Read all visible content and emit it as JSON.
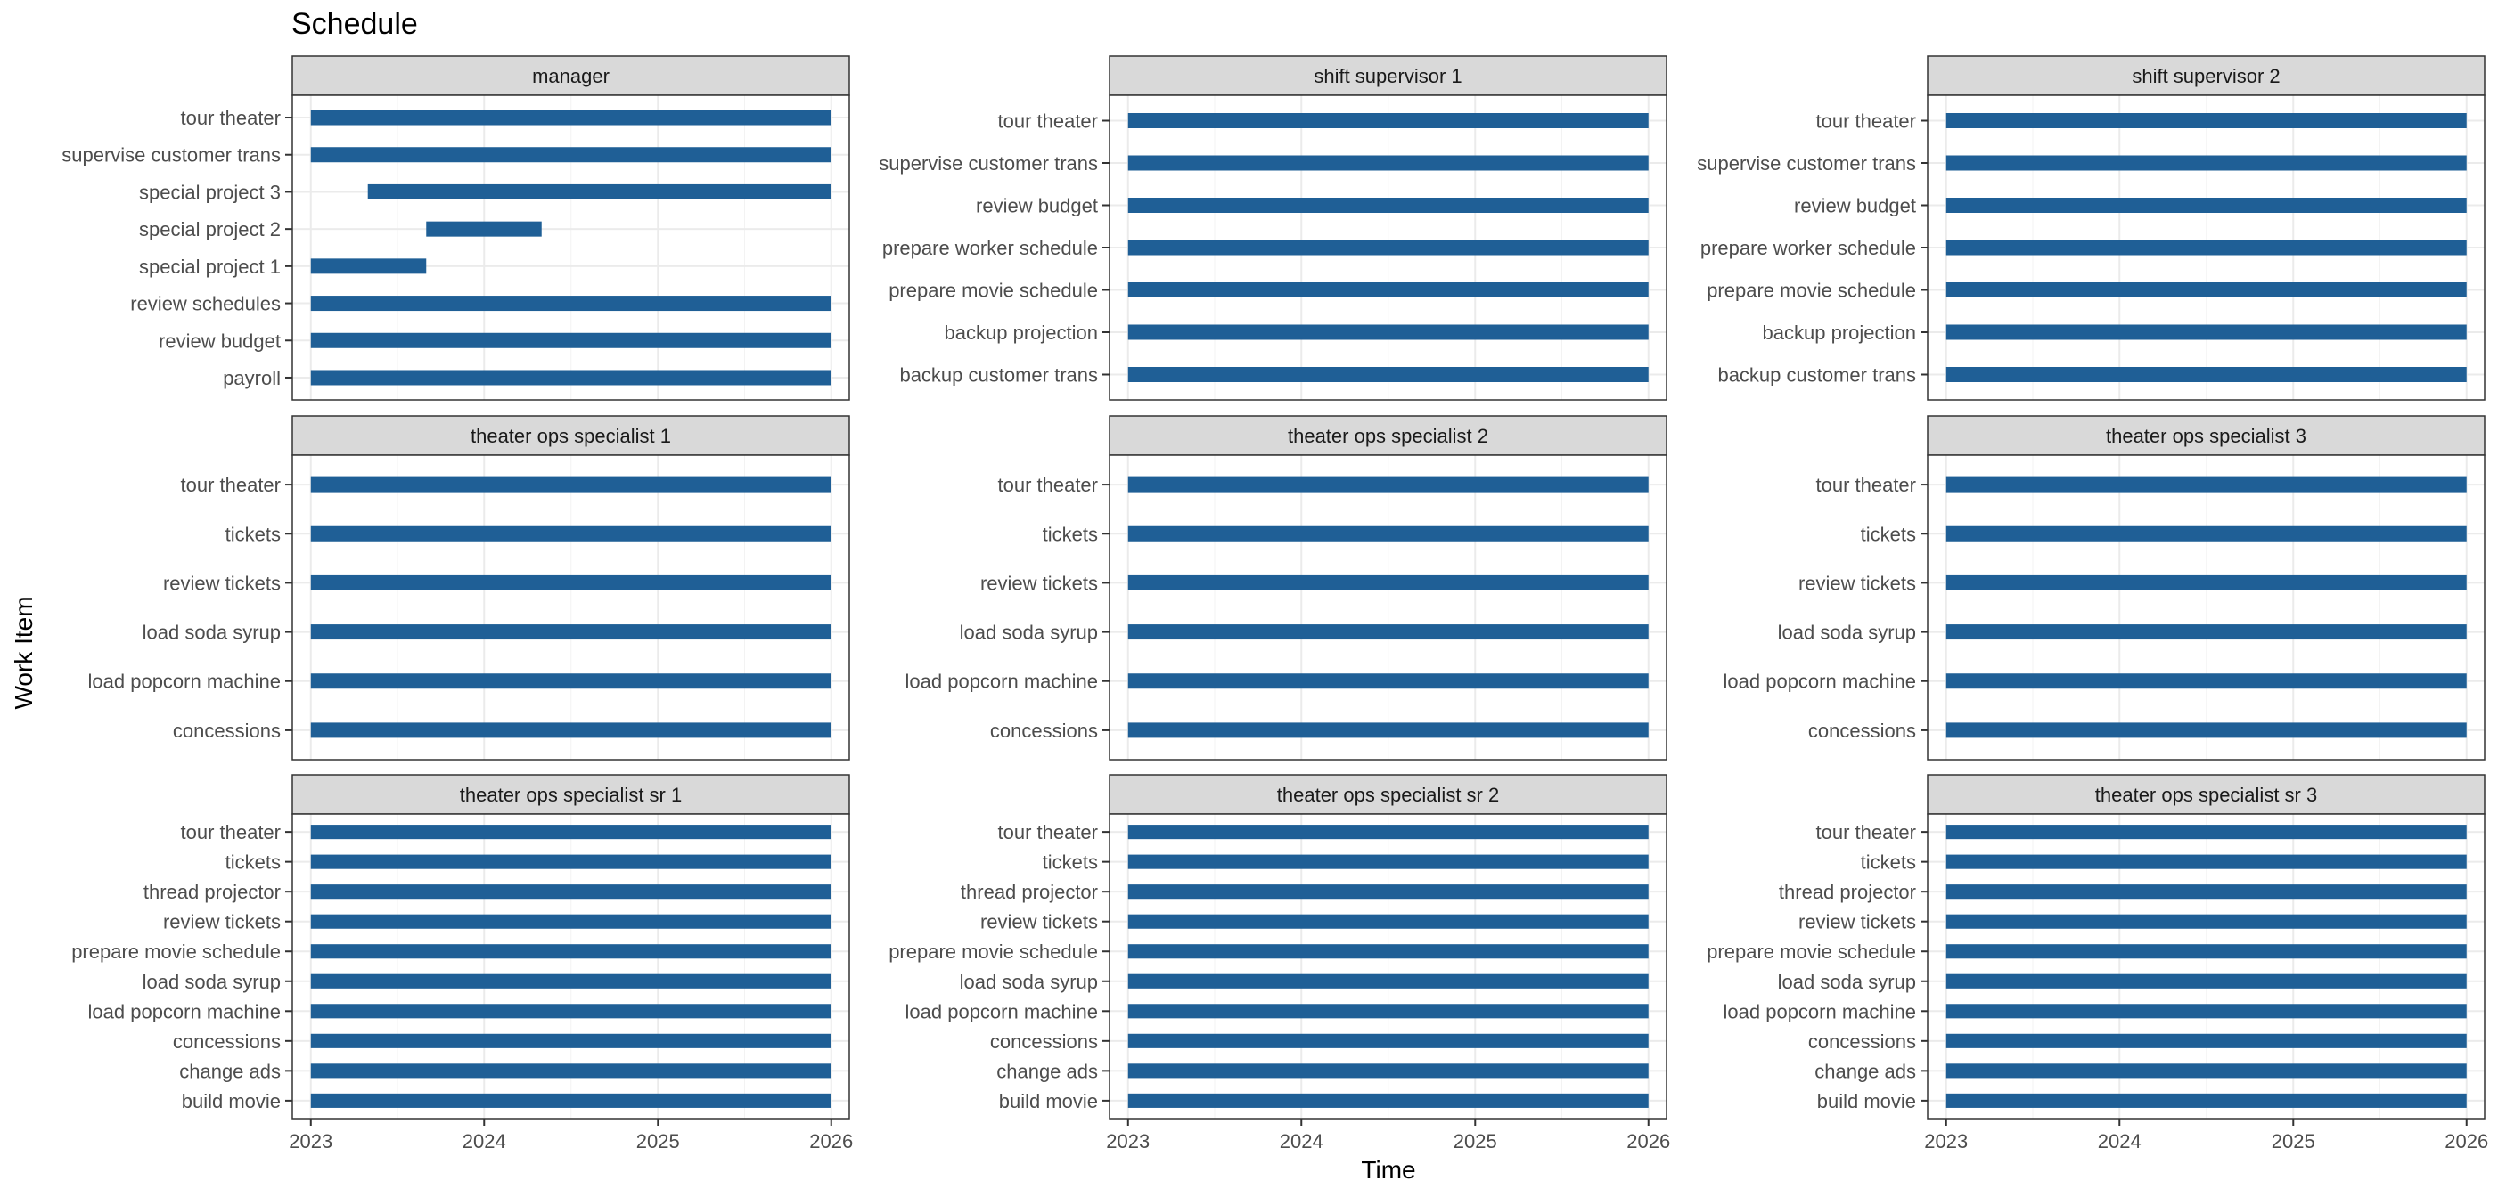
{
  "chart_data": {
    "type": "gantt",
    "title": "Schedule",
    "xlabel": "Time",
    "ylabel": "Work Item",
    "x_ticks": [
      "2023",
      "2024",
      "2025",
      "2026"
    ],
    "xlim": [
      "2022-11-23",
      "2026-02-08"
    ],
    "grid": true,
    "bar_color": "#1f5f96",
    "panels": [
      {
        "name": "manager",
        "items": [
          {
            "label": "tour theater",
            "start": "2023-01-01",
            "end": "2026-01-01"
          },
          {
            "label": "supervise customer trans",
            "start": "2023-01-01",
            "end": "2026-01-01"
          },
          {
            "label": "special project 3",
            "start": "2023-05-01",
            "end": "2026-01-01"
          },
          {
            "label": "special project 2",
            "start": "2023-09-01",
            "end": "2024-05-01"
          },
          {
            "label": "special project 1",
            "start": "2023-01-01",
            "end": "2023-09-01"
          },
          {
            "label": "review schedules",
            "start": "2023-01-01",
            "end": "2026-01-01"
          },
          {
            "label": "review budget",
            "start": "2023-01-01",
            "end": "2026-01-01"
          },
          {
            "label": "payroll",
            "start": "2023-01-01",
            "end": "2026-01-01"
          }
        ]
      },
      {
        "name": "shift supervisor 1",
        "items": [
          {
            "label": "tour theater",
            "start": "2023-01-01",
            "end": "2026-01-01"
          },
          {
            "label": "supervise customer trans",
            "start": "2023-01-01",
            "end": "2026-01-01"
          },
          {
            "label": "review budget",
            "start": "2023-01-01",
            "end": "2026-01-01"
          },
          {
            "label": "prepare worker schedule",
            "start": "2023-01-01",
            "end": "2026-01-01"
          },
          {
            "label": "prepare movie schedule",
            "start": "2023-01-01",
            "end": "2026-01-01"
          },
          {
            "label": "backup projection",
            "start": "2023-01-01",
            "end": "2026-01-01"
          },
          {
            "label": "backup customer trans",
            "start": "2023-01-01",
            "end": "2026-01-01"
          }
        ]
      },
      {
        "name": "shift supervisor 2",
        "items": [
          {
            "label": "tour theater",
            "start": "2023-01-01",
            "end": "2026-01-01"
          },
          {
            "label": "supervise customer trans",
            "start": "2023-01-01",
            "end": "2026-01-01"
          },
          {
            "label": "review budget",
            "start": "2023-01-01",
            "end": "2026-01-01"
          },
          {
            "label": "prepare worker schedule",
            "start": "2023-01-01",
            "end": "2026-01-01"
          },
          {
            "label": "prepare movie schedule",
            "start": "2023-01-01",
            "end": "2026-01-01"
          },
          {
            "label": "backup projection",
            "start": "2023-01-01",
            "end": "2026-01-01"
          },
          {
            "label": "backup customer trans",
            "start": "2023-01-01",
            "end": "2026-01-01"
          }
        ]
      },
      {
        "name": "theater ops specialist 1",
        "items": [
          {
            "label": "tour theater",
            "start": "2023-01-01",
            "end": "2026-01-01"
          },
          {
            "label": "tickets",
            "start": "2023-01-01",
            "end": "2026-01-01"
          },
          {
            "label": "review tickets",
            "start": "2023-01-01",
            "end": "2026-01-01"
          },
          {
            "label": "load soda syrup",
            "start": "2023-01-01",
            "end": "2026-01-01"
          },
          {
            "label": "load popcorn machine",
            "start": "2023-01-01",
            "end": "2026-01-01"
          },
          {
            "label": "concessions",
            "start": "2023-01-01",
            "end": "2026-01-01"
          }
        ]
      },
      {
        "name": "theater ops specialist 2",
        "items": [
          {
            "label": "tour theater",
            "start": "2023-01-01",
            "end": "2026-01-01"
          },
          {
            "label": "tickets",
            "start": "2023-01-01",
            "end": "2026-01-01"
          },
          {
            "label": "review tickets",
            "start": "2023-01-01",
            "end": "2026-01-01"
          },
          {
            "label": "load soda syrup",
            "start": "2023-01-01",
            "end": "2026-01-01"
          },
          {
            "label": "load popcorn machine",
            "start": "2023-01-01",
            "end": "2026-01-01"
          },
          {
            "label": "concessions",
            "start": "2023-01-01",
            "end": "2026-01-01"
          }
        ]
      },
      {
        "name": "theater ops specialist 3",
        "items": [
          {
            "label": "tour theater",
            "start": "2023-01-01",
            "end": "2026-01-01"
          },
          {
            "label": "tickets",
            "start": "2023-01-01",
            "end": "2026-01-01"
          },
          {
            "label": "review tickets",
            "start": "2023-01-01",
            "end": "2026-01-01"
          },
          {
            "label": "load soda syrup",
            "start": "2023-01-01",
            "end": "2026-01-01"
          },
          {
            "label": "load popcorn machine",
            "start": "2023-01-01",
            "end": "2026-01-01"
          },
          {
            "label": "concessions",
            "start": "2023-01-01",
            "end": "2026-01-01"
          }
        ]
      },
      {
        "name": "theater ops specialist sr 1",
        "items": [
          {
            "label": "tour theater",
            "start": "2023-01-01",
            "end": "2026-01-01"
          },
          {
            "label": "tickets",
            "start": "2023-01-01",
            "end": "2026-01-01"
          },
          {
            "label": "thread projector",
            "start": "2023-01-01",
            "end": "2026-01-01"
          },
          {
            "label": "review tickets",
            "start": "2023-01-01",
            "end": "2026-01-01"
          },
          {
            "label": "prepare movie schedule",
            "start": "2023-01-01",
            "end": "2026-01-01"
          },
          {
            "label": "load soda syrup",
            "start": "2023-01-01",
            "end": "2026-01-01"
          },
          {
            "label": "load popcorn machine",
            "start": "2023-01-01",
            "end": "2026-01-01"
          },
          {
            "label": "concessions",
            "start": "2023-01-01",
            "end": "2026-01-01"
          },
          {
            "label": "change ads",
            "start": "2023-01-01",
            "end": "2026-01-01"
          },
          {
            "label": "build movie",
            "start": "2023-01-01",
            "end": "2026-01-01"
          }
        ]
      },
      {
        "name": "theater ops specialist sr 2",
        "items": [
          {
            "label": "tour theater",
            "start": "2023-01-01",
            "end": "2026-01-01"
          },
          {
            "label": "tickets",
            "start": "2023-01-01",
            "end": "2026-01-01"
          },
          {
            "label": "thread projector",
            "start": "2023-01-01",
            "end": "2026-01-01"
          },
          {
            "label": "review tickets",
            "start": "2023-01-01",
            "end": "2026-01-01"
          },
          {
            "label": "prepare movie schedule",
            "start": "2023-01-01",
            "end": "2026-01-01"
          },
          {
            "label": "load soda syrup",
            "start": "2023-01-01",
            "end": "2026-01-01"
          },
          {
            "label": "load popcorn machine",
            "start": "2023-01-01",
            "end": "2026-01-01"
          },
          {
            "label": "concessions",
            "start": "2023-01-01",
            "end": "2026-01-01"
          },
          {
            "label": "change ads",
            "start": "2023-01-01",
            "end": "2026-01-01"
          },
          {
            "label": "build movie",
            "start": "2023-01-01",
            "end": "2026-01-01"
          }
        ]
      },
      {
        "name": "theater ops specialist sr 3",
        "items": [
          {
            "label": "tour theater",
            "start": "2023-01-01",
            "end": "2026-01-01"
          },
          {
            "label": "tickets",
            "start": "2023-01-01",
            "end": "2026-01-01"
          },
          {
            "label": "thread projector",
            "start": "2023-01-01",
            "end": "2026-01-01"
          },
          {
            "label": "review tickets",
            "start": "2023-01-01",
            "end": "2026-01-01"
          },
          {
            "label": "prepare movie schedule",
            "start": "2023-01-01",
            "end": "2026-01-01"
          },
          {
            "label": "load soda syrup",
            "start": "2023-01-01",
            "end": "2026-01-01"
          },
          {
            "label": "load popcorn machine",
            "start": "2023-01-01",
            "end": "2026-01-01"
          },
          {
            "label": "concessions",
            "start": "2023-01-01",
            "end": "2026-01-01"
          },
          {
            "label": "change ads",
            "start": "2023-01-01",
            "end": "2026-01-01"
          },
          {
            "label": "build movie",
            "start": "2023-01-01",
            "end": "2026-01-01"
          }
        ]
      }
    ]
  }
}
